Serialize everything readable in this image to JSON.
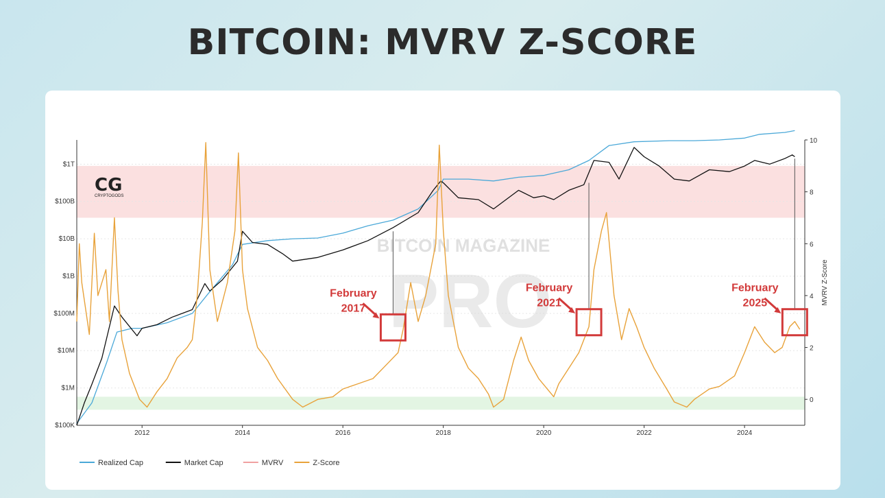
{
  "page": {
    "title": "BITCOIN: MVRV Z-SCORE"
  },
  "logo": {
    "mark": "CG",
    "sub": "CRYPTOGODS"
  },
  "watermark": {
    "line1": "BITCOIN MAGAZINE",
    "line2": "PRO"
  },
  "colors": {
    "realized": "#4aa8d8",
    "market": "#111111",
    "mvrv": "#f0a0a0",
    "zscore": "#e8a23a",
    "annotation": "#d23a3a",
    "upper_band": "#fbe0e0",
    "lower_band": "#e3f5e3"
  },
  "chart_data": {
    "type": "line",
    "title": "BITCOIN: MVRV Z-SCORE",
    "ylabel_right": "MVRV Z-Score",
    "x_range": [
      2010.7,
      2025.2
    ],
    "x_ticks": [
      {
        "value": 2012,
        "label": "2012"
      },
      {
        "value": 2014,
        "label": "2014"
      },
      {
        "value": 2016,
        "label": "2016"
      },
      {
        "value": 2018,
        "label": "2018"
      },
      {
        "value": 2020,
        "label": "2020"
      },
      {
        "value": 2022,
        "label": "2022"
      },
      {
        "value": 2024,
        "label": "2024"
      }
    ],
    "y_left_log10_range": [
      5,
      12.65
    ],
    "y_left_ticks": [
      {
        "log": 5,
        "label": "$100K"
      },
      {
        "log": 6,
        "label": "$1M"
      },
      {
        "log": 7,
        "label": "$10M"
      },
      {
        "log": 8,
        "label": "$100M"
      },
      {
        "log": 9,
        "label": "$1B"
      },
      {
        "log": 10,
        "label": "$10B"
      },
      {
        "log": 11,
        "label": "$100B"
      },
      {
        "log": 12,
        "label": "$1T"
      }
    ],
    "y_right_range": [
      -1,
      10
    ],
    "y_right_ticks": [
      {
        "value": 0,
        "label": "0"
      },
      {
        "value": 2,
        "label": "2"
      },
      {
        "value": 4,
        "label": "4"
      },
      {
        "value": 6,
        "label": "6"
      },
      {
        "value": 8,
        "label": "8"
      },
      {
        "value": 10,
        "label": "10"
      }
    ],
    "bands": [
      {
        "name": "upper",
        "from": 7,
        "to": 9
      },
      {
        "name": "lower",
        "from": -0.4,
        "to": 0.1
      }
    ],
    "series": [
      {
        "name": "Realized Cap",
        "axis": "left_log10",
        "points": [
          [
            2010.7,
            5.05
          ],
          [
            2011.0,
            5.6
          ],
          [
            2011.3,
            6.7
          ],
          [
            2011.5,
            7.5
          ],
          [
            2011.8,
            7.6
          ],
          [
            2012.0,
            7.6
          ],
          [
            2012.5,
            7.75
          ],
          [
            2013.0,
            8.0
          ],
          [
            2013.3,
            8.5
          ],
          [
            2013.8,
            9.3
          ],
          [
            2014.0,
            9.85
          ],
          [
            2014.5,
            9.95
          ],
          [
            2015.0,
            10.0
          ],
          [
            2015.5,
            10.02
          ],
          [
            2016.0,
            10.15
          ],
          [
            2016.5,
            10.35
          ],
          [
            2017.0,
            10.5
          ],
          [
            2017.5,
            10.8
          ],
          [
            2017.9,
            11.3
          ],
          [
            2018.0,
            11.6
          ],
          [
            2018.5,
            11.6
          ],
          [
            2019.0,
            11.55
          ],
          [
            2019.5,
            11.65
          ],
          [
            2020.0,
            11.7
          ],
          [
            2020.5,
            11.85
          ],
          [
            2020.9,
            12.1
          ],
          [
            2021.3,
            12.5
          ],
          [
            2021.8,
            12.6
          ],
          [
            2022.5,
            12.63
          ],
          [
            2023.0,
            12.63
          ],
          [
            2023.5,
            12.65
          ],
          [
            2024.0,
            12.7
          ],
          [
            2024.3,
            12.8
          ],
          [
            2024.8,
            12.85
          ],
          [
            2025.0,
            12.9
          ]
        ]
      },
      {
        "name": "Market Cap",
        "axis": "left_log10",
        "points": [
          [
            2010.7,
            5.0
          ],
          [
            2010.85,
            5.6
          ],
          [
            2011.0,
            6.1
          ],
          [
            2011.2,
            6.8
          ],
          [
            2011.45,
            8.2
          ],
          [
            2011.6,
            7.9
          ],
          [
            2011.9,
            7.4
          ],
          [
            2012.0,
            7.6
          ],
          [
            2012.3,
            7.7
          ],
          [
            2012.6,
            7.9
          ],
          [
            2013.0,
            8.1
          ],
          [
            2013.25,
            8.8
          ],
          [
            2013.35,
            8.6
          ],
          [
            2013.6,
            8.9
          ],
          [
            2013.9,
            9.4
          ],
          [
            2014.0,
            10.2
          ],
          [
            2014.2,
            9.9
          ],
          [
            2014.5,
            9.85
          ],
          [
            2014.8,
            9.6
          ],
          [
            2015.0,
            9.4
          ],
          [
            2015.5,
            9.5
          ],
          [
            2016.0,
            9.7
          ],
          [
            2016.5,
            9.95
          ],
          [
            2017.0,
            10.3
          ],
          [
            2017.5,
            10.7
          ],
          [
            2017.8,
            11.3
          ],
          [
            2017.95,
            11.55
          ],
          [
            2018.0,
            11.5
          ],
          [
            2018.3,
            11.1
          ],
          [
            2018.7,
            11.05
          ],
          [
            2019.0,
            10.8
          ],
          [
            2019.5,
            11.3
          ],
          [
            2019.8,
            11.1
          ],
          [
            2020.0,
            11.15
          ],
          [
            2020.2,
            11.05
          ],
          [
            2020.5,
            11.3
          ],
          [
            2020.8,
            11.45
          ],
          [
            2021.0,
            12.1
          ],
          [
            2021.3,
            12.05
          ],
          [
            2021.5,
            11.6
          ],
          [
            2021.8,
            12.45
          ],
          [
            2022.0,
            12.2
          ],
          [
            2022.3,
            11.95
          ],
          [
            2022.6,
            11.6
          ],
          [
            2022.9,
            11.55
          ],
          [
            2023.3,
            11.85
          ],
          [
            2023.7,
            11.8
          ],
          [
            2024.0,
            11.95
          ],
          [
            2024.2,
            12.1
          ],
          [
            2024.5,
            12.0
          ],
          [
            2024.8,
            12.15
          ],
          [
            2024.95,
            12.25
          ],
          [
            2025.0,
            12.2
          ]
        ]
      },
      {
        "name": "Z-Score",
        "axis": "right",
        "points": [
          [
            2010.7,
            3
          ],
          [
            2010.75,
            6
          ],
          [
            2010.8,
            4.5
          ],
          [
            2010.95,
            2.5
          ],
          [
            2011.05,
            6.4
          ],
          [
            2011.12,
            4
          ],
          [
            2011.28,
            5
          ],
          [
            2011.35,
            3
          ],
          [
            2011.45,
            7
          ],
          [
            2011.52,
            4.2
          ],
          [
            2011.6,
            2.3
          ],
          [
            2011.75,
            1
          ],
          [
            2011.95,
            0
          ],
          [
            2012.1,
            -0.3
          ],
          [
            2012.3,
            0.3
          ],
          [
            2012.5,
            0.8
          ],
          [
            2012.7,
            1.6
          ],
          [
            2012.9,
            2
          ],
          [
            2013.0,
            2.3
          ],
          [
            2013.1,
            4
          ],
          [
            2013.2,
            6.8
          ],
          [
            2013.27,
            9.9
          ],
          [
            2013.35,
            5
          ],
          [
            2013.5,
            3
          ],
          [
            2013.7,
            4.5
          ],
          [
            2013.85,
            6.5
          ],
          [
            2013.92,
            9.5
          ],
          [
            2014.0,
            5
          ],
          [
            2014.1,
            3.5
          ],
          [
            2014.3,
            2
          ],
          [
            2014.5,
            1.5
          ],
          [
            2014.7,
            0.8
          ],
          [
            2015.0,
            0
          ],
          [
            2015.2,
            -0.3
          ],
          [
            2015.5,
            0
          ],
          [
            2015.8,
            0.1
          ],
          [
            2016.0,
            0.4
          ],
          [
            2016.3,
            0.6
          ],
          [
            2016.6,
            0.8
          ],
          [
            2016.9,
            1.4
          ],
          [
            2017.1,
            1.8
          ],
          [
            2017.2,
            2.7
          ],
          [
            2017.35,
            4.5
          ],
          [
            2017.5,
            3
          ],
          [
            2017.65,
            4
          ],
          [
            2017.85,
            6
          ],
          [
            2017.92,
            9.8
          ],
          [
            2018.0,
            6.5
          ],
          [
            2018.1,
            4
          ],
          [
            2018.3,
            2
          ],
          [
            2018.5,
            1.2
          ],
          [
            2018.7,
            0.8
          ],
          [
            2018.9,
            0.2
          ],
          [
            2019.0,
            -0.3
          ],
          [
            2019.2,
            0
          ],
          [
            2019.4,
            1.5
          ],
          [
            2019.55,
            2.4
          ],
          [
            2019.7,
            1.5
          ],
          [
            2019.9,
            0.8
          ],
          [
            2020.2,
            0.1
          ],
          [
            2020.3,
            0.6
          ],
          [
            2020.5,
            1.2
          ],
          [
            2020.7,
            1.8
          ],
          [
            2020.9,
            2.8
          ],
          [
            2021.0,
            5
          ],
          [
            2021.15,
            6.5
          ],
          [
            2021.25,
            7.2
          ],
          [
            2021.4,
            4
          ],
          [
            2021.55,
            2.3
          ],
          [
            2021.7,
            3.5
          ],
          [
            2021.85,
            2.8
          ],
          [
            2022.0,
            2
          ],
          [
            2022.2,
            1.2
          ],
          [
            2022.45,
            0.4
          ],
          [
            2022.6,
            -0.1
          ],
          [
            2022.85,
            -0.3
          ],
          [
            2023.0,
            0
          ],
          [
            2023.3,
            0.4
          ],
          [
            2023.5,
            0.5
          ],
          [
            2023.8,
            0.9
          ],
          [
            2024.0,
            1.8
          ],
          [
            2024.2,
            2.8
          ],
          [
            2024.4,
            2.2
          ],
          [
            2024.6,
            1.8
          ],
          [
            2024.75,
            2
          ],
          [
            2024.9,
            2.8
          ],
          [
            2025.0,
            3
          ],
          [
            2025.1,
            2.7
          ]
        ]
      }
    ],
    "annotations": [
      {
        "lines": [
          "February",
          "2017"
        ],
        "x": 2017.0,
        "y": 2.8,
        "vline_to_log": 10.2
      },
      {
        "lines": [
          "February",
          "2021"
        ],
        "x": 2020.9,
        "y": 3.0,
        "vline_to_log": 11.5
      },
      {
        "lines": [
          "February",
          "2025"
        ],
        "x": 2025.0,
        "y": 3.0,
        "vline_to_log": 12.15
      }
    ],
    "legend": [
      {
        "name": "Realized Cap",
        "color": "#4aa8d8"
      },
      {
        "name": "Market Cap",
        "color": "#111111"
      },
      {
        "name": "MVRV",
        "color": "#f0a0a0"
      },
      {
        "name": "Z-Score",
        "color": "#e8a23a"
      }
    ]
  }
}
